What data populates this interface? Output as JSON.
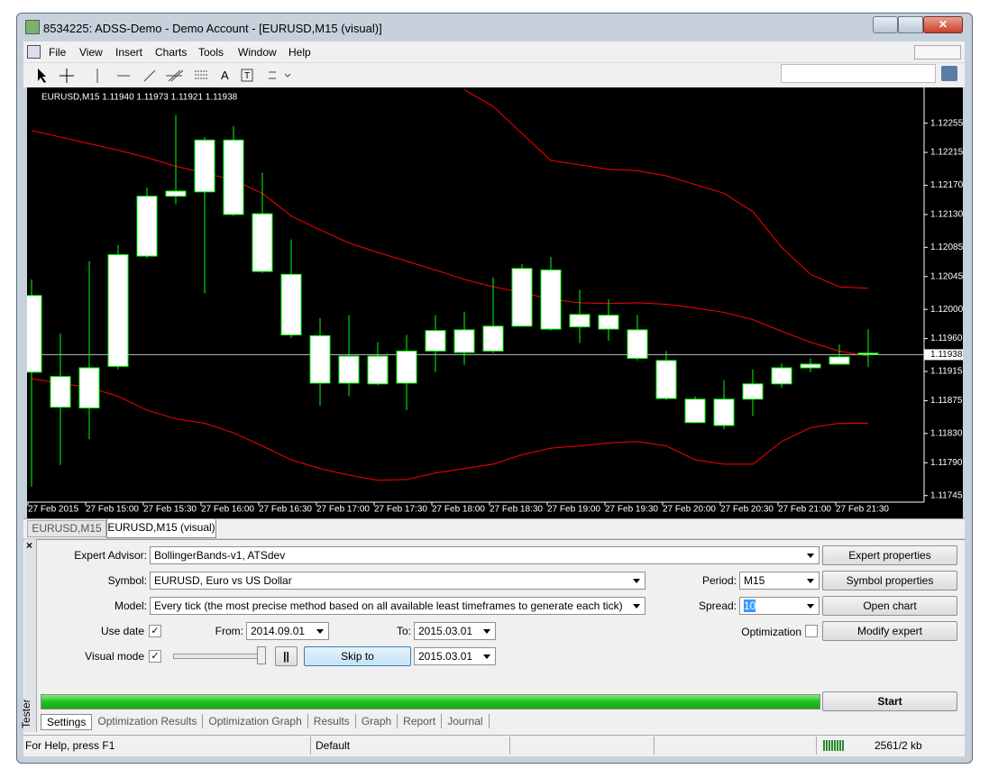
{
  "window": {
    "title": "8534225: ADSS-Demo - Demo Account - [EURUSD,M15 (visual)]"
  },
  "menu": [
    "File",
    "View",
    "Insert",
    "Charts",
    "Tools",
    "Window",
    "Help"
  ],
  "chart_data": {
    "type": "candlestick",
    "title": "EURUSD,M15  1.11940 1.11973 1.11921 1.11938",
    "categories": [
      "27 Feb 2015",
      null,
      "27 Feb 15:00",
      null,
      "27 Feb 15:30",
      null,
      "27 Feb 16:00",
      null,
      "27 Feb 16:30",
      null,
      "27 Feb 17:00",
      null,
      "27 Feb 17:30",
      null,
      "27 Feb 18:00",
      null,
      "27 Feb 18:30",
      null,
      "27 Feb 19:00",
      null,
      "27 Feb 19:30",
      null,
      "27 Feb 20:00",
      null,
      "27 Feb 20:30",
      null,
      "27 Feb 21:00",
      null,
      "27 Feb 21:30",
      null
    ],
    "open": [
      1.12019,
      1.11908,
      1.11865,
      1.11922,
      1.12073,
      1.12155,
      1.12161,
      1.12232,
      1.12131,
      1.12048,
      1.11964,
      1.11899,
      1.11936,
      1.11899,
      1.11943,
      1.11941,
      1.11943,
      1.11977,
      1.12054,
      1.11993,
      1.11992,
      1.11972,
      1.1193,
      1.11877,
      1.11841,
      1.11877,
      1.11898,
      1.1192,
      1.11925,
      1.1194
    ],
    "high": [
      1.12041,
      1.11967,
      1.12066,
      1.12088,
      1.12167,
      1.12266,
      1.12236,
      1.12251,
      1.12187,
      1.12096,
      1.11988,
      1.11992,
      1.11955,
      1.11965,
      1.11992,
      1.11997,
      1.12044,
      1.12062,
      1.12072,
      1.12027,
      1.12014,
      1.11992,
      1.11943,
      1.11881,
      1.11903,
      1.11918,
      1.11926,
      1.11933,
      1.11952,
      1.11973
    ],
    "low": [
      1.11757,
      1.11787,
      1.11822,
      1.11918,
      1.1207,
      1.12144,
      1.12022,
      1.12128,
      1.1205,
      1.11961,
      1.11868,
      1.11881,
      1.11896,
      1.11862,
      1.11914,
      1.11924,
      1.1194,
      1.11977,
      1.11971,
      1.11954,
      1.11957,
      1.1193,
      1.11876,
      1.11844,
      1.11836,
      1.11854,
      1.11893,
      1.11914,
      1.11924,
      1.11921
    ],
    "close": [
      1.11914,
      1.11866,
      1.1192,
      1.12075,
      1.12155,
      1.12162,
      1.12232,
      1.1213,
      1.12052,
      1.11965,
      1.11899,
      1.11936,
      1.11898,
      1.11943,
      1.11971,
      1.11972,
      1.11977,
      1.12056,
      1.11973,
      1.11976,
      1.11973,
      1.11933,
      1.11878,
      1.11845,
      1.11877,
      1.11898,
      1.1192,
      1.11925,
      1.11935,
      1.11938
    ],
    "body_color": "#ffffff",
    "candle_color": "#00ff00",
    "bands": [
      {
        "color": "#ff0000",
        "values": [
          null,
          null,
          null,
          null,
          null,
          null,
          null,
          null,
          null,
          null,
          null,
          null,
          null,
          null,
          null,
          1.12301,
          1.12278,
          1.12241,
          1.12204,
          1.12198,
          1.12192,
          1.1219,
          1.12183,
          1.12171,
          1.12159,
          1.12134,
          1.12085,
          1.12048,
          1.12031,
          1.12029
        ]
      },
      {
        "color": "#ff0000",
        "values": [
          1.12245,
          1.12236,
          1.12227,
          1.12218,
          1.12208,
          1.12196,
          1.12187,
          1.12177,
          1.12159,
          1.12128,
          1.12109,
          1.12091,
          1.12078,
          1.12066,
          1.12054,
          1.12041,
          1.12031,
          1.12023,
          1.12014,
          1.12009,
          1.12008,
          1.12009,
          1.12007,
          1.12002,
          1.11996,
          1.11986,
          1.1197,
          1.11955,
          1.11943,
          1.11936
        ]
      },
      {
        "color": "#ff0000",
        "values": [
          1.11905,
          1.11899,
          1.11893,
          1.11881,
          1.11862,
          1.1185,
          1.11844,
          1.11831,
          1.11813,
          1.11794,
          1.11782,
          1.11773,
          1.11766,
          1.11767,
          1.11776,
          1.11782,
          1.11788,
          1.11801,
          1.1181,
          1.11813,
          1.11817,
          1.11819,
          1.11813,
          1.11794,
          1.11788,
          1.11788,
          1.11819,
          1.11838,
          1.11844,
          1.11844
        ]
      }
    ],
    "last_price": 1.11938,
    "ylim": [
      1.11736,
      1.12304
    ],
    "yticks": [
      1.12255,
      1.12215,
      {
        "value": 1.1217,
        "label": "1.12170"
      },
      {
        "value": 1.1213,
        "label": "1.12130"
      },
      1.12085,
      1.12045,
      {
        "value": 1.12,
        "label": "1.12000"
      },
      {
        "value": 1.1196,
        "label": "1.11960"
      },
      1.11915,
      1.11875,
      {
        "value": 1.1183,
        "label": "1.11830"
      },
      {
        "value": 1.1179,
        "label": "1.11790"
      },
      1.11745
    ]
  },
  "chart_tabs": [
    "EURUSD,M15",
    "EURUSD,M15 (visual)"
  ],
  "tester": {
    "panel_label": "Tester",
    "expert_label": "Expert Advisor:",
    "expert": "BollingerBands-v1, ATSdev",
    "symbol_label": "Symbol:",
    "symbol": "EURUSD, Euro vs US Dollar",
    "model_label": "Model:",
    "model": "Every tick (the most precise method based on all available least timeframes to generate each tick)",
    "use_date_label": "Use date",
    "from_label": "From:",
    "from": "2014.09.01",
    "to_label": "To:",
    "to": "2015.03.01",
    "visual_mode_label": "Visual mode",
    "skip_to": "Skip to",
    "skip_date": "2015.03.01",
    "period_label": "Period:",
    "period": "M15",
    "spread_label": "Spread:",
    "spread": "10",
    "optimization_label": "Optimization",
    "buttons": [
      "Expert properties",
      "Symbol properties",
      "Open chart",
      "Modify expert",
      "Start"
    ],
    "tabs": [
      "Settings",
      "Optimization Results",
      "Optimization Graph",
      "Results",
      "Graph",
      "Report",
      "Journal"
    ]
  },
  "status_bar": {
    "help": "For Help, press F1",
    "profile": "Default",
    "traffic": "2561/2 kb"
  }
}
